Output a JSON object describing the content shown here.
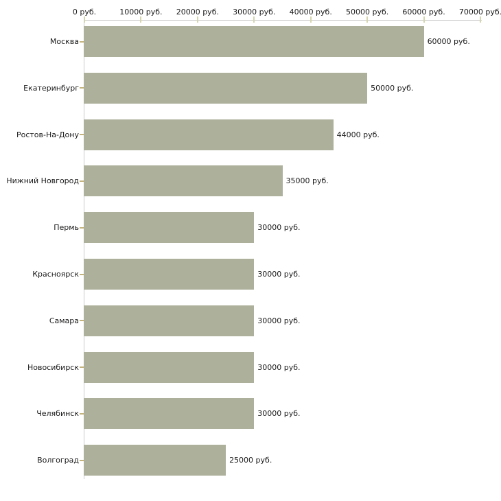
{
  "chart_data": {
    "type": "bar",
    "orientation": "horizontal",
    "title": "",
    "xlabel": "",
    "ylabel": "",
    "unit": "руб.",
    "categories": [
      "Москва",
      "Екатеринбург",
      "Ростов-На-Дону",
      "Нижний Новгород",
      "Пермь",
      "Красноярск",
      "Самара",
      "Новосибирск",
      "Челябинск",
      "Волгоград"
    ],
    "values": [
      60000,
      50000,
      44000,
      35000,
      30000,
      30000,
      30000,
      30000,
      30000,
      25000
    ],
    "bar_labels": [
      "60000 руб.",
      "50000 руб.",
      "44000 руб.",
      "35000 руб.",
      "30000 руб.",
      "30000 руб.",
      "30000 руб.",
      "30000 руб.",
      "30000 руб.",
      "25000 руб."
    ],
    "x_axis": {
      "position": "top",
      "xlim": [
        0,
        70000
      ],
      "ticks": [
        0,
        10000,
        20000,
        30000,
        40000,
        50000,
        60000,
        70000
      ],
      "tick_labels": [
        "0 руб.",
        "10000 руб.",
        "20000 руб.",
        "30000 руб.",
        "40000 руб.",
        "50000 руб.",
        "60000 руб.",
        "70000 руб."
      ]
    },
    "legend": "none",
    "grid": "off",
    "colors": {
      "background": "#ffffff",
      "bar": "#adb19b",
      "axis_line": "#c9c9c9",
      "x_tick": "#d6d6ae",
      "y_tick_dash": "#c4b47c",
      "text": "#1a1a1a"
    }
  }
}
